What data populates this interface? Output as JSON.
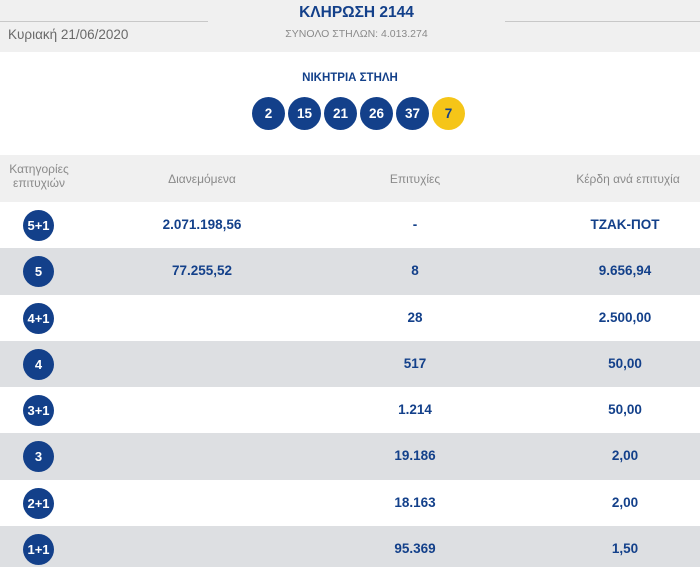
{
  "header": {
    "date": "Κυριακή 21/06/2020",
    "draw_title": "ΚΛΗΡΩΣΗ 2144",
    "columns_total": "ΣΥΝΟΛΟ ΣΤΗΛΩΝ: 4.013.274"
  },
  "winning": {
    "title": "ΝΙΚΗΤΡΙΑ ΣΤΗΛΗ",
    "numbers": [
      "2",
      "15",
      "21",
      "26",
      "37"
    ],
    "joker": "7",
    "ball_color": "#13408a",
    "joker_color": "#f5c518"
  },
  "table": {
    "headers": {
      "category_line1": "Κατηγορίες",
      "category_line2": "επιτυχιών",
      "distributed": "Διανεμόμενα",
      "winners": "Επιτυχίες",
      "prize": "Κέρδη ανά επιτυχία"
    },
    "rows": [
      {
        "category": "5+1",
        "distributed": "2.071.198,56",
        "winners": "-",
        "prize": "ΤΖΑΚ-ΠΟΤ"
      },
      {
        "category": "5",
        "distributed": "77.255,52",
        "winners": "8",
        "prize": "9.656,94"
      },
      {
        "category": "4+1",
        "distributed": "",
        "winners": "28",
        "prize": "2.500,00"
      },
      {
        "category": "4",
        "distributed": "",
        "winners": "517",
        "prize": "50,00"
      },
      {
        "category": "3+1",
        "distributed": "",
        "winners": "1.214",
        "prize": "50,00"
      },
      {
        "category": "3",
        "distributed": "",
        "winners": "19.186",
        "prize": "2,00"
      },
      {
        "category": "2+1",
        "distributed": "",
        "winners": "18.163",
        "prize": "2,00"
      },
      {
        "category": "1+1",
        "distributed": "",
        "winners": "95.369",
        "prize": "1,50"
      }
    ]
  }
}
